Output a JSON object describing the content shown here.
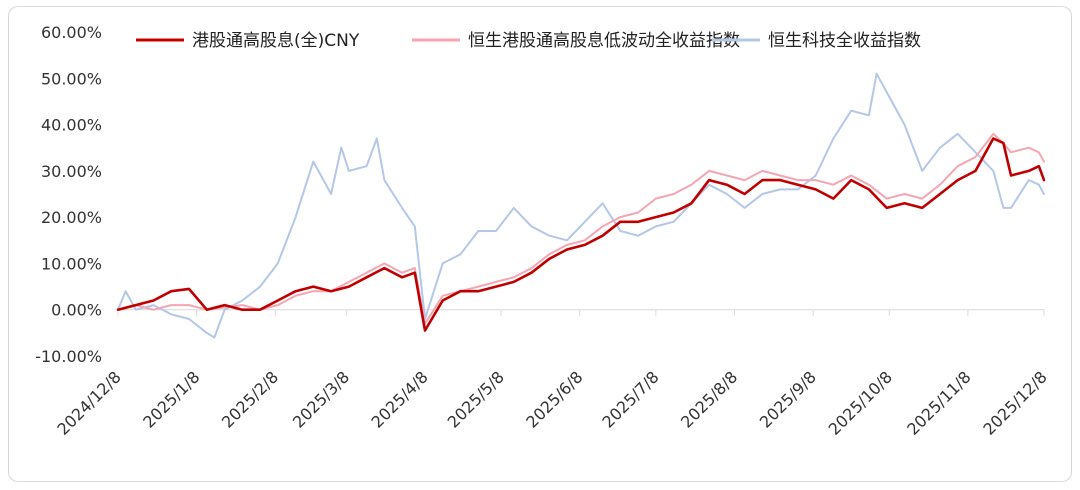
{
  "chart_data": {
    "type": "line",
    "title": "",
    "xlabel": "",
    "ylabel": "",
    "ylim": [
      -0.1,
      0.6
    ],
    "y_ticks": [
      -0.1,
      0.0,
      0.1,
      0.2,
      0.3,
      0.4,
      0.5,
      0.6
    ],
    "y_tick_labels": [
      "-10.00%",
      "0.00%",
      "10.00%",
      "20.00%",
      "30.00%",
      "40.00%",
      "50.00%",
      "60.00%"
    ],
    "x_tick_labels": [
      "2024/12/8",
      "2025/1/8",
      "2025/2/8",
      "2025/3/8",
      "2025/4/8",
      "2025/5/8",
      "2025/6/8",
      "2025/7/8",
      "2025/8/8",
      "2025/9/8",
      "2025/10/8",
      "2025/11/8",
      "2025/12/8"
    ],
    "grid": false,
    "legend_position": "top",
    "series": [
      {
        "name": "港股通高股息(全)CNY",
        "color": "#c00000",
        "points": [
          [
            "2024/12/8",
            0.0
          ],
          [
            "2024/12/15",
            0.01
          ],
          [
            "2024/12/22",
            0.02
          ],
          [
            "2024/12/29",
            0.04
          ],
          [
            "2025/1/5",
            0.045
          ],
          [
            "2025/1/12",
            0.0
          ],
          [
            "2025/1/19",
            0.01
          ],
          [
            "2025/1/26",
            0.0
          ],
          [
            "2025/2/2",
            0.0
          ],
          [
            "2025/2/9",
            0.02
          ],
          [
            "2025/2/16",
            0.04
          ],
          [
            "2025/2/23",
            0.05
          ],
          [
            "2025/3/2",
            0.04
          ],
          [
            "2025/3/9",
            0.05
          ],
          [
            "2025/3/16",
            0.07
          ],
          [
            "2025/3/23",
            0.09
          ],
          [
            "2025/3/30",
            0.07
          ],
          [
            "2025/4/4",
            0.08
          ],
          [
            "2025/4/8",
            -0.045
          ],
          [
            "2025/4/15",
            0.02
          ],
          [
            "2025/4/22",
            0.04
          ],
          [
            "2025/4/29",
            0.04
          ],
          [
            "2025/5/6",
            0.05
          ],
          [
            "2025/5/13",
            0.06
          ],
          [
            "2025/5/20",
            0.08
          ],
          [
            "2025/5/27",
            0.11
          ],
          [
            "2025/6/3",
            0.13
          ],
          [
            "2025/6/10",
            0.14
          ],
          [
            "2025/6/17",
            0.16
          ],
          [
            "2025/6/24",
            0.19
          ],
          [
            "2025/7/1",
            0.19
          ],
          [
            "2025/7/8",
            0.2
          ],
          [
            "2025/7/15",
            0.21
          ],
          [
            "2025/7/22",
            0.23
          ],
          [
            "2025/7/29",
            0.28
          ],
          [
            "2025/8/5",
            0.27
          ],
          [
            "2025/8/12",
            0.25
          ],
          [
            "2025/8/19",
            0.28
          ],
          [
            "2025/8/26",
            0.28
          ],
          [
            "2025/9/2",
            0.27
          ],
          [
            "2025/9/9",
            0.26
          ],
          [
            "2025/9/16",
            0.24
          ],
          [
            "2025/9/23",
            0.28
          ],
          [
            "2025/9/30",
            0.26
          ],
          [
            "2025/10/7",
            0.22
          ],
          [
            "2025/10/14",
            0.23
          ],
          [
            "2025/10/21",
            0.22
          ],
          [
            "2025/10/28",
            0.25
          ],
          [
            "2025/11/4",
            0.28
          ],
          [
            "2025/11/11",
            0.3
          ],
          [
            "2025/11/18",
            0.37
          ],
          [
            "2025/11/22",
            0.36
          ],
          [
            "2025/11/25",
            0.29
          ],
          [
            "2025/12/2",
            0.3
          ],
          [
            "2025/12/6",
            0.31
          ],
          [
            "2025/12/8",
            0.28
          ]
        ]
      },
      {
        "name": "恒生港股通高股息低波动全收益指数",
        "color": "#f4a6b3",
        "points": [
          [
            "2024/12/8",
            0.0
          ],
          [
            "2024/12/15",
            0.01
          ],
          [
            "2024/12/22",
            0.0
          ],
          [
            "2024/12/29",
            0.01
          ],
          [
            "2025/1/5",
            0.01
          ],
          [
            "2025/1/12",
            0.0
          ],
          [
            "2025/1/19",
            0.005
          ],
          [
            "2025/1/26",
            0.01
          ],
          [
            "2025/2/2",
            0.0
          ],
          [
            "2025/2/9",
            0.01
          ],
          [
            "2025/2/16",
            0.03
          ],
          [
            "2025/2/23",
            0.04
          ],
          [
            "2025/3/2",
            0.04
          ],
          [
            "2025/3/9",
            0.06
          ],
          [
            "2025/3/16",
            0.08
          ],
          [
            "2025/3/23",
            0.1
          ],
          [
            "2025/3/30",
            0.08
          ],
          [
            "2025/4/4",
            0.09
          ],
          [
            "2025/4/8",
            -0.03
          ],
          [
            "2025/4/15",
            0.03
          ],
          [
            "2025/4/22",
            0.04
          ],
          [
            "2025/4/29",
            0.05
          ],
          [
            "2025/5/6",
            0.06
          ],
          [
            "2025/5/13",
            0.07
          ],
          [
            "2025/5/20",
            0.09
          ],
          [
            "2025/5/27",
            0.12
          ],
          [
            "2025/6/3",
            0.14
          ],
          [
            "2025/6/10",
            0.15
          ],
          [
            "2025/6/17",
            0.18
          ],
          [
            "2025/6/24",
            0.2
          ],
          [
            "2025/7/1",
            0.21
          ],
          [
            "2025/7/8",
            0.24
          ],
          [
            "2025/7/15",
            0.25
          ],
          [
            "2025/7/22",
            0.27
          ],
          [
            "2025/7/29",
            0.3
          ],
          [
            "2025/8/5",
            0.29
          ],
          [
            "2025/8/12",
            0.28
          ],
          [
            "2025/8/19",
            0.3
          ],
          [
            "2025/8/26",
            0.29
          ],
          [
            "2025/9/2",
            0.28
          ],
          [
            "2025/9/9",
            0.28
          ],
          [
            "2025/9/16",
            0.27
          ],
          [
            "2025/9/23",
            0.29
          ],
          [
            "2025/9/30",
            0.27
          ],
          [
            "2025/10/7",
            0.24
          ],
          [
            "2025/10/14",
            0.25
          ],
          [
            "2025/10/21",
            0.24
          ],
          [
            "2025/10/28",
            0.27
          ],
          [
            "2025/11/4",
            0.31
          ],
          [
            "2025/11/11",
            0.33
          ],
          [
            "2025/11/18",
            0.38
          ],
          [
            "2025/11/22",
            0.36
          ],
          [
            "2025/11/25",
            0.34
          ],
          [
            "2025/12/2",
            0.35
          ],
          [
            "2025/12/6",
            0.34
          ],
          [
            "2025/12/8",
            0.32
          ]
        ]
      },
      {
        "name": "恒生科技全收益指数",
        "color": "#b4c7e7",
        "points": [
          [
            "2024/12/8",
            0.0
          ],
          [
            "2024/12/11",
            0.04
          ],
          [
            "2024/12/15",
            0.0
          ],
          [
            "2024/12/22",
            0.01
          ],
          [
            "2024/12/29",
            -0.01
          ],
          [
            "2025/1/5",
            -0.02
          ],
          [
            "2025/1/12",
            -0.05
          ],
          [
            "2025/1/15",
            -0.06
          ],
          [
            "2025/1/19",
            0.0
          ],
          [
            "2025/1/26",
            0.02
          ],
          [
            "2025/2/2",
            0.05
          ],
          [
            "2025/2/9",
            0.1
          ],
          [
            "2025/2/16",
            0.2
          ],
          [
            "2025/2/23",
            0.32
          ],
          [
            "2025/3/2",
            0.25
          ],
          [
            "2025/3/6",
            0.35
          ],
          [
            "2025/3/9",
            0.3
          ],
          [
            "2025/3/16",
            0.31
          ],
          [
            "2025/3/20",
            0.37
          ],
          [
            "2025/3/23",
            0.28
          ],
          [
            "2025/3/30",
            0.22
          ],
          [
            "2025/4/4",
            0.18
          ],
          [
            "2025/4/8",
            -0.02
          ],
          [
            "2025/4/15",
            0.1
          ],
          [
            "2025/4/22",
            0.12
          ],
          [
            "2025/4/29",
            0.17
          ],
          [
            "2025/5/6",
            0.17
          ],
          [
            "2025/5/13",
            0.22
          ],
          [
            "2025/5/20",
            0.18
          ],
          [
            "2025/5/27",
            0.16
          ],
          [
            "2025/6/3",
            0.15
          ],
          [
            "2025/6/10",
            0.19
          ],
          [
            "2025/6/17",
            0.23
          ],
          [
            "2025/6/24",
            0.17
          ],
          [
            "2025/7/1",
            0.16
          ],
          [
            "2025/7/8",
            0.18
          ],
          [
            "2025/7/15",
            0.19
          ],
          [
            "2025/7/22",
            0.23
          ],
          [
            "2025/7/29",
            0.27
          ],
          [
            "2025/8/5",
            0.25
          ],
          [
            "2025/8/12",
            0.22
          ],
          [
            "2025/8/19",
            0.25
          ],
          [
            "2025/8/26",
            0.26
          ],
          [
            "2025/9/2",
            0.26
          ],
          [
            "2025/9/9",
            0.29
          ],
          [
            "2025/9/16",
            0.37
          ],
          [
            "2025/9/23",
            0.43
          ],
          [
            "2025/9/30",
            0.42
          ],
          [
            "2025/10/3",
            0.51
          ],
          [
            "2025/10/7",
            0.47
          ],
          [
            "2025/10/14",
            0.4
          ],
          [
            "2025/10/21",
            0.3
          ],
          [
            "2025/10/28",
            0.35
          ],
          [
            "2025/11/4",
            0.38
          ],
          [
            "2025/11/11",
            0.34
          ],
          [
            "2025/11/18",
            0.3
          ],
          [
            "2025/11/22",
            0.22
          ],
          [
            "2025/11/25",
            0.22
          ],
          [
            "2025/12/2",
            0.28
          ],
          [
            "2025/12/6",
            0.27
          ],
          [
            "2025/12/8",
            0.25
          ]
        ]
      }
    ]
  }
}
